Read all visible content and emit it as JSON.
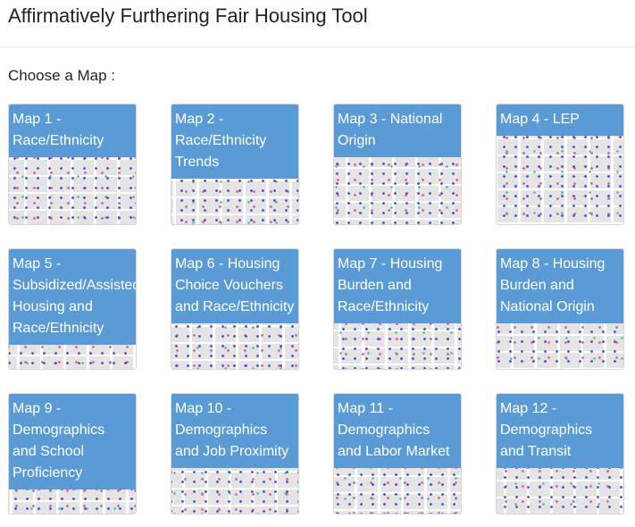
{
  "header": {
    "title": "Affirmatively Furthering Fair Housing Tool"
  },
  "prompt": "Choose a Map :",
  "maps": [
    {
      "label": "Map 1 - Race/Ethnicity"
    },
    {
      "label": "Map 2 - Race/Ethnicity Trends"
    },
    {
      "label": "Map 3 - National Origin"
    },
    {
      "label": "Map 4 - LEP"
    },
    {
      "label": "Map 5 - Subsidized/Assisted Housing and Race/Ethnicity"
    },
    {
      "label": "Map 6 - Housing Choice Vouchers and Race/Ethnicity"
    },
    {
      "label": "Map 7 - Housing Burden and Race/Ethnicity"
    },
    {
      "label": "Map 8 - Housing Burden and National Origin"
    },
    {
      "label": "Map 9 - Demographics and School Proficiency"
    },
    {
      "label": "Map 10 - Demographics and Job Proximity"
    },
    {
      "label": "Map 11 - Demographics and Labor Market"
    },
    {
      "label": "Map 12 - Demographics and Transit"
    }
  ]
}
